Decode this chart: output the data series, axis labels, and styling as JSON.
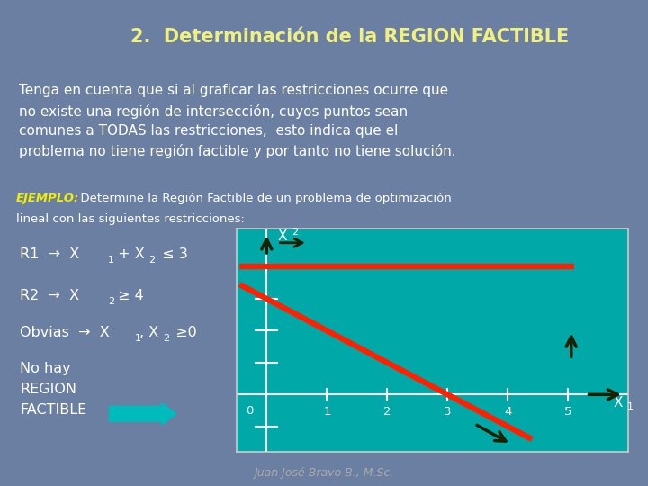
{
  "title": "2.  Determinación de la REGION FACTIBLE",
  "title_bg": "#1e3a5f",
  "title_color": "#f0f080",
  "slide_bg": "#6b7fa3",
  "text_box_bg": "#3a3a10",
  "text_box_text_color": "#ffffff",
  "text_box_content": "Tenga en cuenta que si al graficar las restricciones ocurre que\nno existe una región de intersección, cuyos puntos sean\ncomunes a TODAS las restricciones,  esto indica que el\nproblema no tiene región factible y por tanto no tiene solución.",
  "ejemplo_label": "EJEMPLO:",
  "ejemplo_label_color": "#f0f000",
  "ejemplo_text_color": "#ffffff",
  "bottom_panel_bg": "#3a3a10",
  "left_panel_text_color": "#ffffff",
  "nohay_text": "No hay\nREGION\nFACTIBLE",
  "arrow_fill": "#00bbbb",
  "graph_bg": "#00a8a8",
  "graph_border": "#cccccc",
  "line1_color": "#ff2000",
  "line1_lw": 4.5,
  "line2_color": "#ff2000",
  "line2_lw": 4.5,
  "dark_arrow_color": "#1a2000",
  "tick_labels": [
    "1",
    "2",
    "3",
    "4",
    "5"
  ],
  "footer_text": "Juan José Bravo B., M.Sc.",
  "footer_color": "#aaaaaa",
  "footer_bg": "#4a5a7a"
}
